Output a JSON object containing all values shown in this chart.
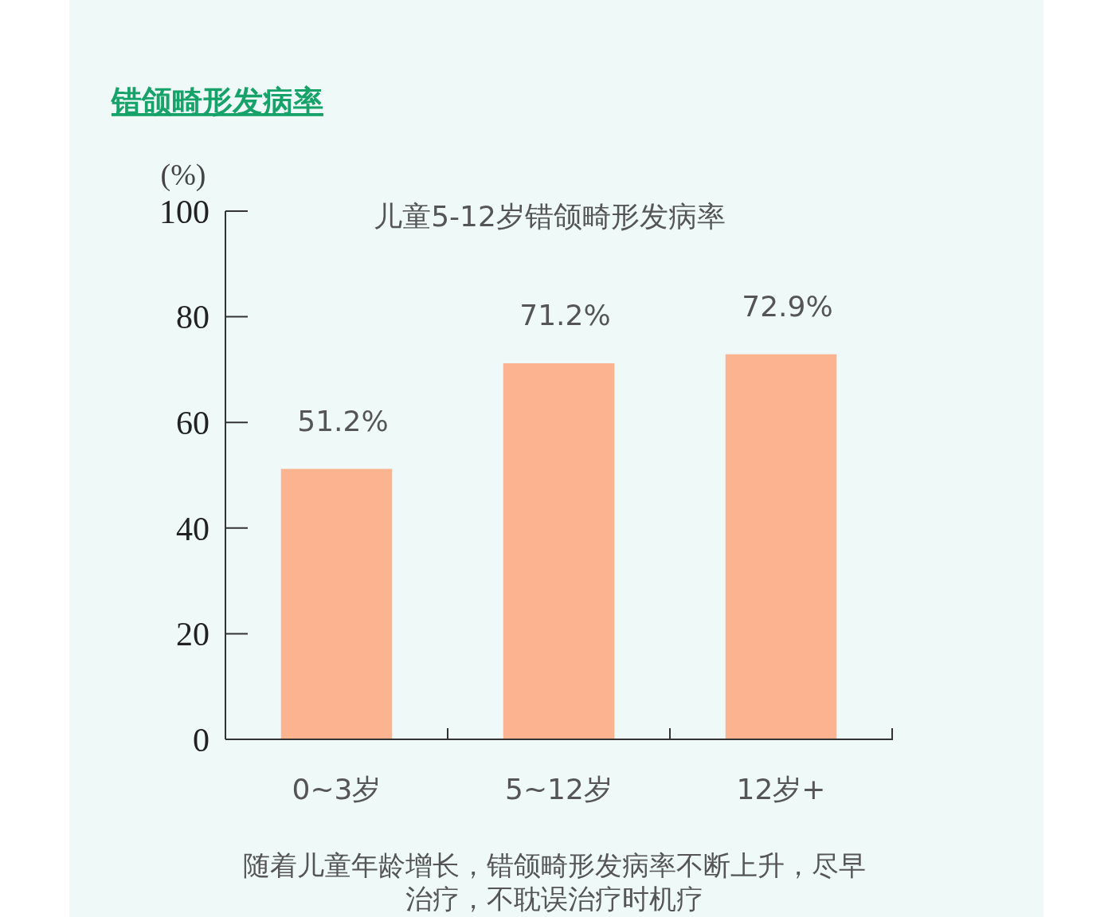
{
  "chart_data": {
    "type": "bar",
    "title": "错颌畸形发病率",
    "subtitle": "儿童5-12岁错颌畸形发病率",
    "ylabel": "(%)",
    "categories": [
      "0~3岁",
      "5~12岁",
      "12岁+"
    ],
    "values": [
      51.2,
      71.2,
      72.9
    ],
    "color": "#fbb48f",
    "value_labels": [
      "51.2%",
      "71.2%",
      "72.9%"
    ],
    "ylim": [
      0,
      100
    ],
    "yticks": [
      0,
      20,
      40,
      60,
      80,
      100
    ],
    "grid": false,
    "annotations": [
      "随着儿童年龄增长，错颌畸形发病率不断上升，尽早治疗，不耽误治疗时机疗"
    ]
  }
}
